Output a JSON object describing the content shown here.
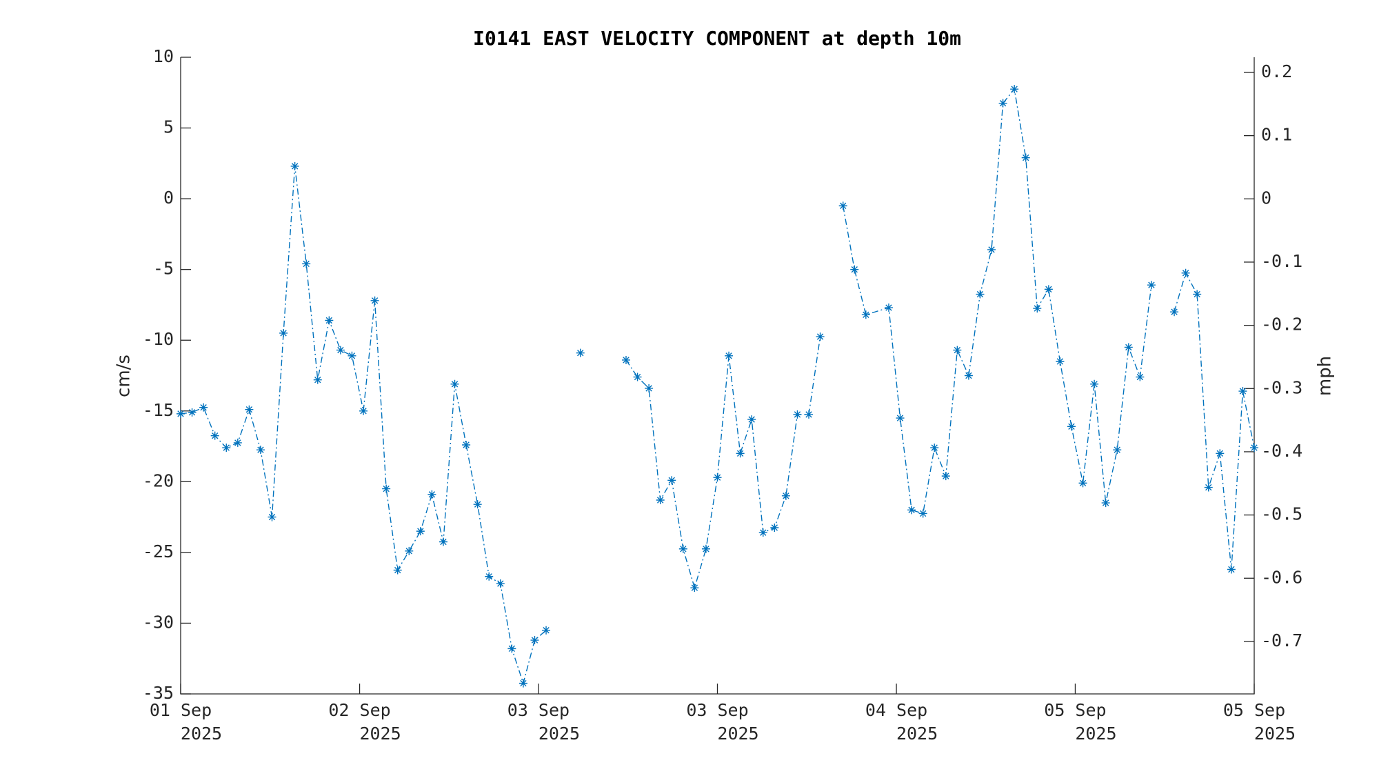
{
  "chart_data": {
    "type": "line",
    "title": "I0141 EAST VELOCITY COMPONENT at depth 10m",
    "ylabel": "cm/s",
    "y2label": "mph",
    "x": [
      0,
      1,
      2,
      3,
      4,
      5,
      6,
      7,
      8,
      9,
      10,
      11,
      12,
      13,
      14,
      15,
      16,
      17,
      18,
      19,
      20,
      21,
      22,
      23,
      24,
      25,
      26,
      27,
      28,
      29,
      30,
      31,
      32,
      33,
      34,
      35,
      36,
      37,
      38,
      39,
      40,
      41,
      42,
      43,
      44,
      45,
      46,
      47,
      48,
      49,
      50,
      51,
      52,
      53,
      54,
      55,
      56,
      57,
      58,
      59,
      60,
      62,
      63,
      64,
      65,
      66,
      67,
      68,
      69,
      70,
      71,
      72,
      73,
      74,
      75,
      76,
      77,
      78,
      79,
      80,
      81,
      82,
      83,
      84,
      85,
      86,
      87,
      88,
      89,
      90,
      91,
      92,
      93,
      94
    ],
    "series": [
      {
        "name": "East velocity",
        "color": "#0072bd",
        "marker": "asterisk",
        "linestyle": "dashdot",
        "values": [
          -15.2,
          -15.1,
          -14.75,
          -16.75,
          -17.6,
          -17.25,
          -14.9,
          -17.75,
          -22.5,
          -9.5,
          2.3,
          -4.6,
          -12.8,
          -8.6,
          -10.7,
          -11.1,
          -15,
          -7.2,
          -20.5,
          -26.25,
          -24.9,
          -23.5,
          -20.9,
          -24.25,
          -13.1,
          -17.4,
          -21.6,
          -26.7,
          -27.2,
          -31.8,
          -34.25,
          -31.2,
          -30.5,
          null,
          null,
          -10.9,
          null,
          null,
          null,
          -11.4,
          -12.6,
          -13.4,
          -21.3,
          -19.9,
          -24.75,
          -27.5,
          -24.75,
          -19.7,
          -11.1,
          -18,
          -15.6,
          -23.6,
          -23.25,
          -21,
          -15.25,
          -15.25,
          -9.75,
          null,
          -0.5,
          -5,
          -8.2,
          -7.7,
          -15.5,
          -22,
          -22.25,
          -17.6,
          -19.6,
          -10.7,
          -12.5,
          -6.75,
          -3.6,
          6.75,
          7.75,
          2.9,
          -7.75,
          -6.4,
          -11.5,
          -16.1,
          -20.1,
          -13.1,
          -21.5,
          -17.75,
          -10.5,
          -12.6,
          -6.1,
          null,
          -8,
          -5.25,
          -6.75,
          -20.4,
          -18,
          -26.2,
          -13.6,
          -17.6
        ]
      }
    ],
    "xlim": [
      0,
      94
    ],
    "xticks": [
      {
        "value": 0,
        "label": "01 Sep 2025"
      },
      {
        "value": 15.67,
        "label": "02 Sep 2025"
      },
      {
        "value": 31.33,
        "label": "03 Sep 2025"
      },
      {
        "value": 47,
        "label": "03 Sep 2025"
      },
      {
        "value": 62.67,
        "label": "04 Sep 2025"
      },
      {
        "value": 78.33,
        "label": "05 Sep 2025"
      },
      {
        "value": 94,
        "label": "05 Sep 2025"
      }
    ],
    "ylim": [
      -35,
      10
    ],
    "yticks": [
      -35,
      -30,
      -25,
      -20,
      -15,
      -10,
      -5,
      0,
      5,
      10
    ],
    "y2lim": [
      -0.783,
      0.224
    ],
    "y2ticks": [
      -0.7,
      -0.6,
      -0.5,
      -0.4,
      -0.3,
      -0.2,
      -0.1,
      0,
      0.1,
      0.2
    ],
    "grid": false
  }
}
